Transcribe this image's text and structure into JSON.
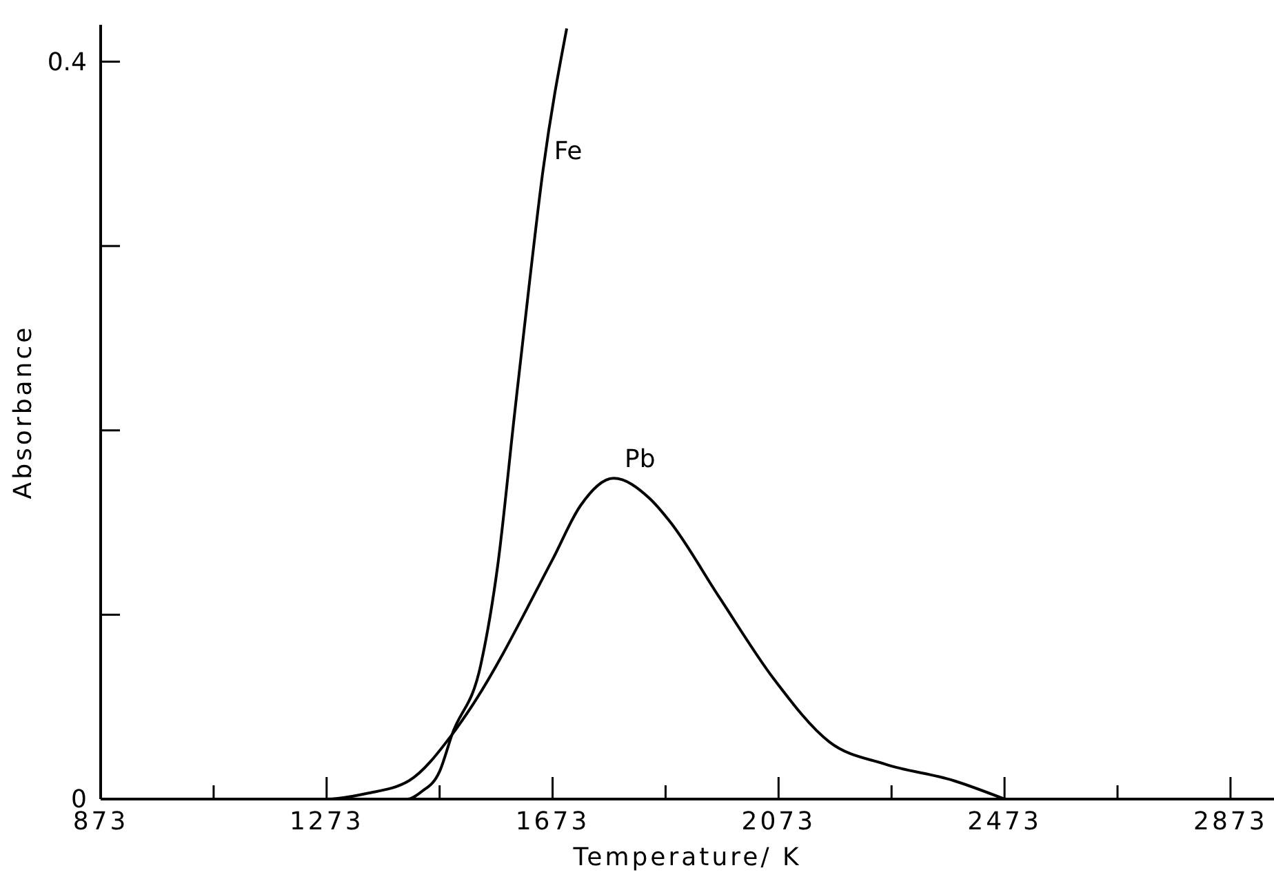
{
  "chart_data": {
    "type": "line",
    "xlabel": "Temperature/ K",
    "ylabel": "Absorbance",
    "xlim": [
      873,
      2950
    ],
    "xticks": [
      873,
      {
        "value": 1073,
        "label": null
      },
      1273,
      {
        "value": 1473,
        "label": null
      },
      1673,
      {
        "value": 1873,
        "label": null
      },
      2073,
      {
        "value": 2273,
        "label": null
      },
      2473,
      {
        "value": 2673,
        "label": null
      },
      2873
    ],
    "ylim": [
      0,
      0.42
    ],
    "yticks": [
      0,
      {
        "value": 0.1,
        "label": null
      },
      {
        "value": 0.2,
        "label": null
      },
      {
        "value": 0.3,
        "label": null
      },
      0.4
    ],
    "grid": false,
    "marker": "none",
    "line_style": "solid",
    "series": [
      {
        "name": "Fe",
        "color": "#000000",
        "x": [
          873,
          1273,
          1416,
          1441,
          1473,
          1495,
          1546,
          1576,
          1605,
          1632,
          1656,
          1698
        ],
        "values": [
          0,
          0,
          0,
          0.004,
          0.015,
          0.035,
          0.073,
          0.127,
          0.207,
          0.28,
          0.341,
          0.418
        ]
      },
      {
        "name": "Pb",
        "color": "#000000",
        "x": [
          873,
          1273,
          1343,
          1419,
          1495,
          1527,
          1673,
          1722,
          1781,
          1845,
          1882,
          1967,
          2065,
          2163,
          2261,
          2383,
          2473
        ],
        "values": [
          0,
          0,
          0.003,
          0.01,
          0.035,
          0.049,
          0.13,
          0.159,
          0.174,
          0.163,
          0.15,
          0.11,
          0.065,
          0.031,
          0.019,
          0.01,
          0
        ]
      }
    ]
  }
}
